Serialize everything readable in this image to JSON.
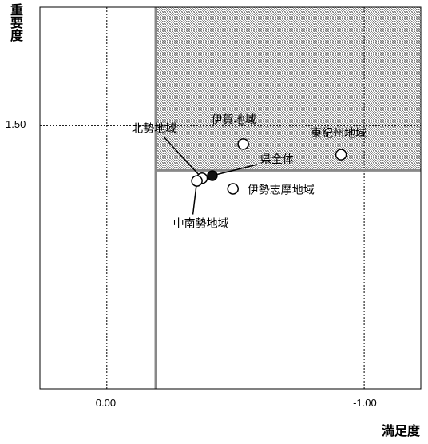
{
  "chart_data": {
    "type": "scatter",
    "xlabel": "満足度",
    "ylabel": "重要度",
    "x_reversed": true,
    "xlim": [
      0.26,
      -1.22
    ],
    "ylim": [
      0.5,
      1.95
    ],
    "x_ticks": [
      {
        "value": 0.0,
        "label": "0.00"
      },
      {
        "value": -1.0,
        "label": "-1.00"
      }
    ],
    "y_ticks": [
      {
        "value": 1.5,
        "label": "1.50"
      }
    ],
    "threshold": {
      "x": -0.19,
      "y": 1.33
    },
    "shaded_region": "x < -0.19 and y > 1.33",
    "grid": true,
    "points": [
      {
        "label": "伊賀地域",
        "x": -0.53,
        "y": 1.43,
        "style": "open"
      },
      {
        "label": "東紀州地域",
        "x": -0.91,
        "y": 1.39,
        "style": "open"
      },
      {
        "label": "県全体",
        "x": -0.41,
        "y": 1.31,
        "style": "filled"
      },
      {
        "label": "北勢地域",
        "x": -0.37,
        "y": 1.3,
        "style": "open"
      },
      {
        "label": "中南勢地域",
        "x": -0.35,
        "y": 1.29,
        "style": "open"
      },
      {
        "label": "伊勢志摩地域",
        "x": -0.49,
        "y": 1.26,
        "style": "open"
      }
    ]
  }
}
